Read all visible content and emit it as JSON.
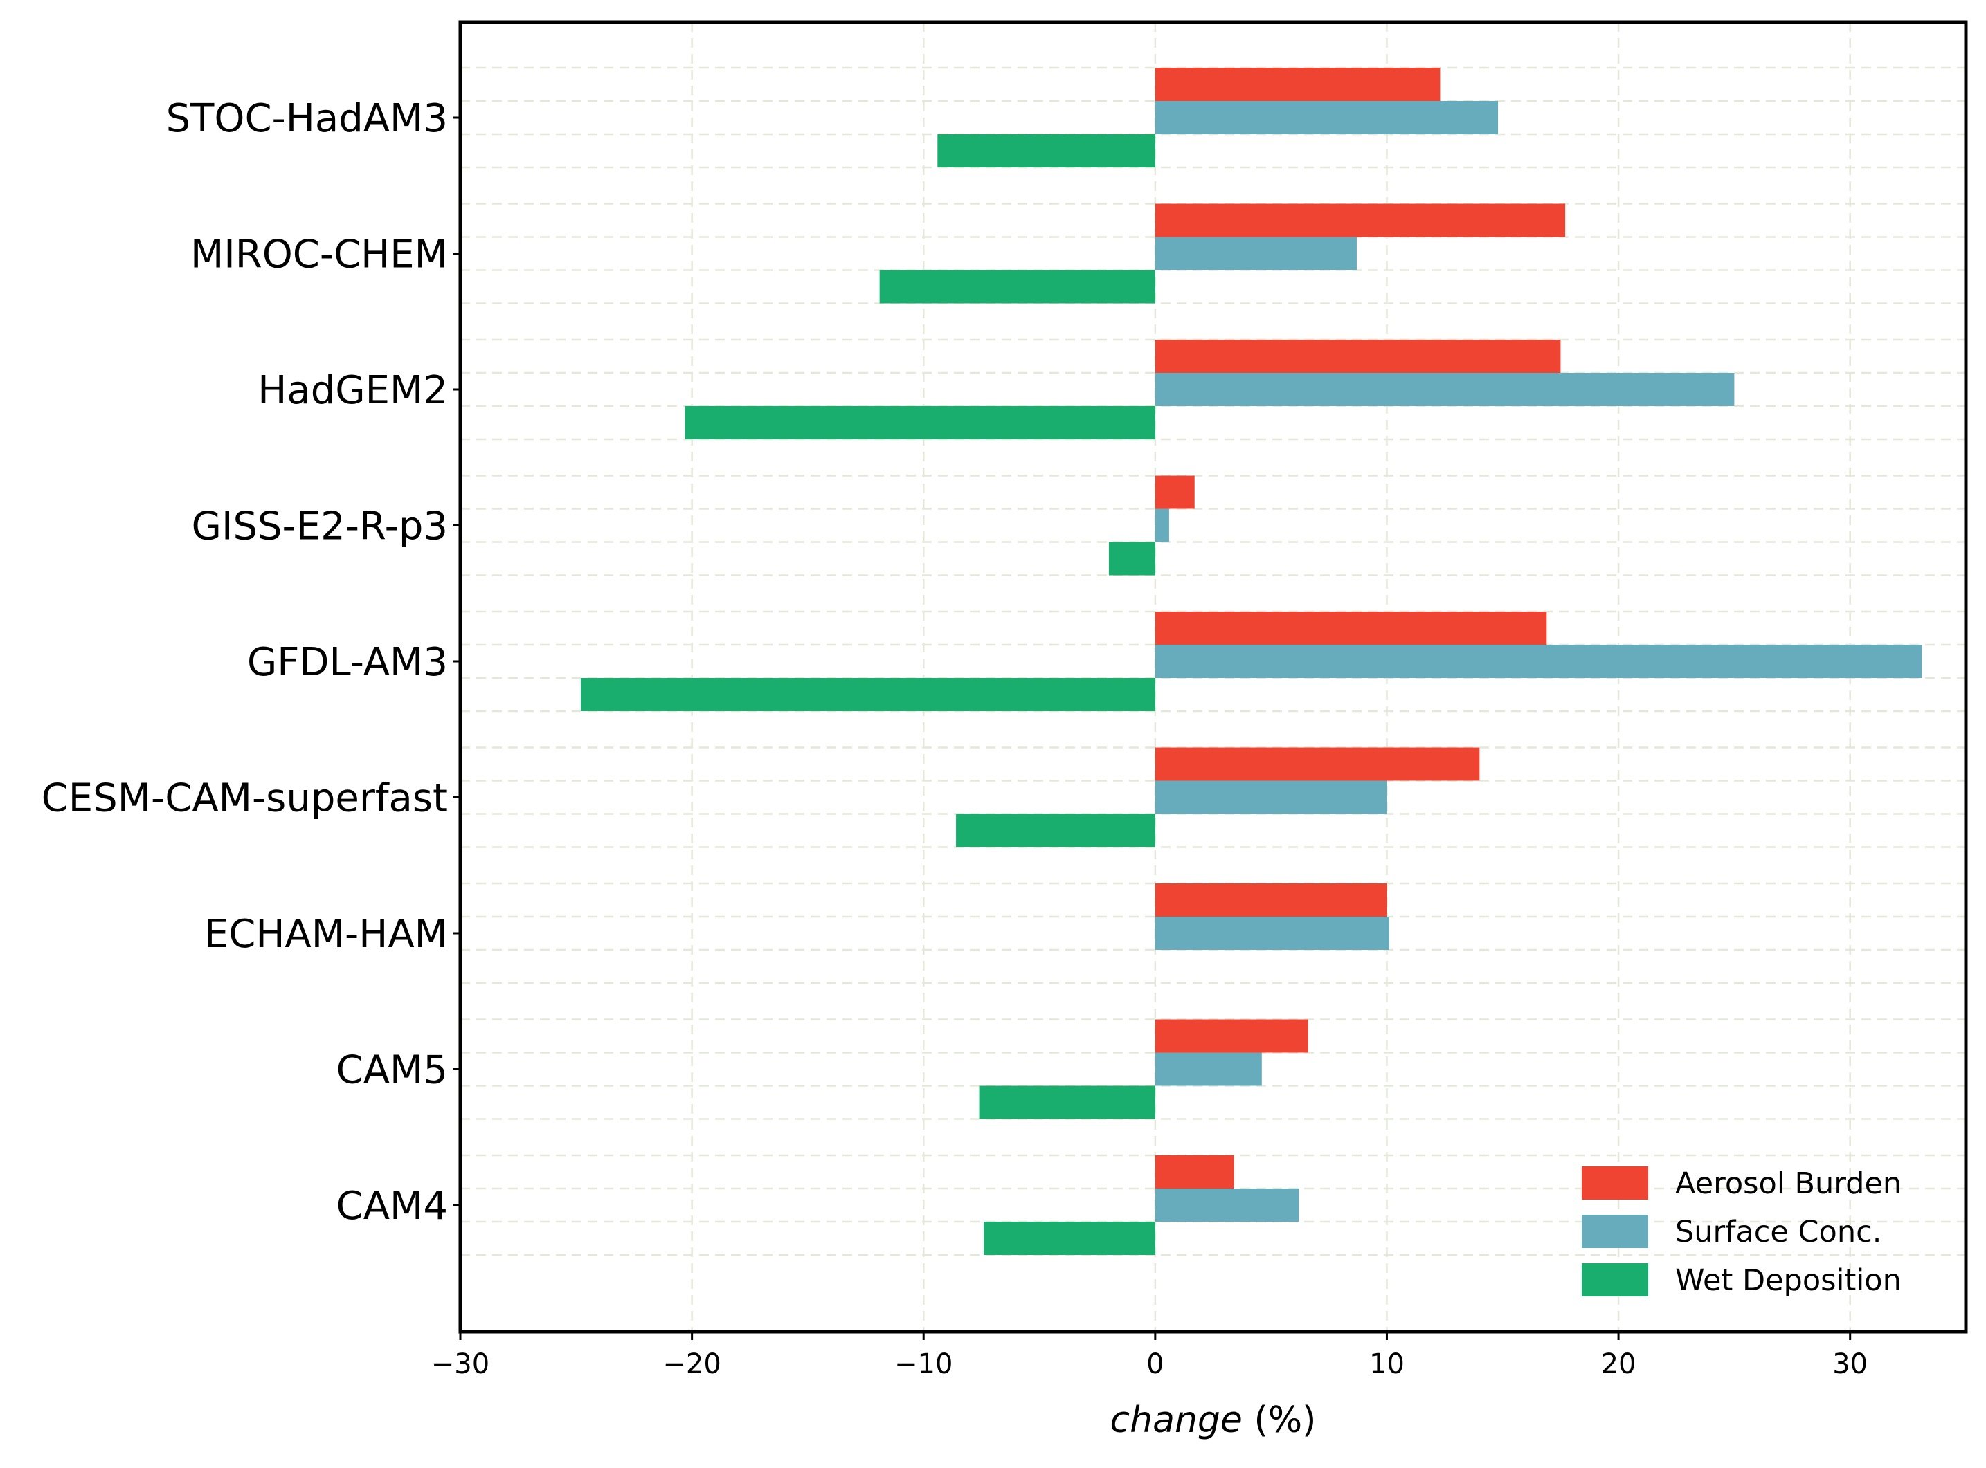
{
  "chart_data": {
    "type": "bar",
    "orientation": "horizontal",
    "categories": [
      "STOC-HadAM3",
      "MIROC-CHEM",
      "HadGEM2",
      "GISS-E2-R-p3",
      "GFDL-AM3",
      "CESM-CAM-superfast",
      "ECHAM-HAM",
      "CAM5",
      "CAM4"
    ],
    "series": [
      {
        "name": "Aerosol Burden",
        "color": "#ee4431",
        "values": [
          12.3,
          17.7,
          17.5,
          1.7,
          16.9,
          14.0,
          10.0,
          6.6,
          3.4
        ]
      },
      {
        "name": "Surface Conc.",
        "color": "#66acbd",
        "values": [
          14.8,
          8.7,
          25.0,
          0.6,
          33.1,
          10.0,
          10.1,
          4.6,
          6.2
        ]
      },
      {
        "name": "Wet Deposition",
        "color": "#1aae6e",
        "values": [
          -9.4,
          -11.9,
          -20.3,
          -2.0,
          -24.8,
          -8.6,
          null,
          -7.6,
          -7.4
        ]
      }
    ],
    "xlabel_italic": "change",
    "xlabel_unit": " (%)",
    "xlim": [
      -30,
      35
    ],
    "xticks": [
      -30,
      -20,
      -10,
      0,
      10,
      20,
      30
    ],
    "xtick_labels": [
      "−30",
      "−20",
      "−10",
      "0",
      "10",
      "20",
      "30"
    ],
    "grid": true,
    "legend_position": "lower-right"
  }
}
